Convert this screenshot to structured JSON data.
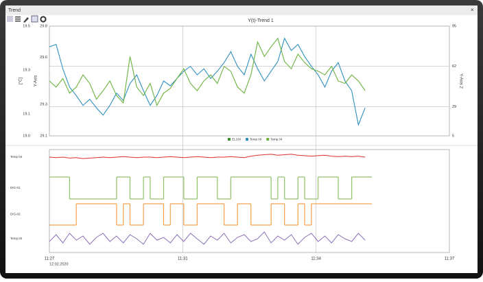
{
  "window": {
    "title": "Trend"
  },
  "chart_data": [
    {
      "type": "line",
      "title": "Y(t)-Trend 1",
      "ylabel": "[°C]",
      "ylim": [
        19.0,
        19.5
      ],
      "yticks": [
        19.5,
        19.3,
        19.1,
        {
          "value": 19,
          "label": "19.0"
        }
      ],
      "inner_axis": {
        "label": "Y-Axis",
        "lim": [
          29.1,
          29.8
        ],
        "ticks": [
          29.8,
          29.6,
          29.3,
          29.1
        ]
      },
      "y2label": "Y-Axis 2",
      "y2lim": [
        5,
        95
      ],
      "y2ticks": [
        95,
        62,
        29,
        5
      ],
      "grid": true,
      "series": [
        {
          "name": "EL100",
          "color": "#3d8f2e",
          "axis": "y2",
          "values": [
            null,
            null,
            null,
            null,
            null,
            null,
            null,
            null,
            null,
            null,
            null,
            null,
            null,
            null,
            null,
            null,
            null,
            null,
            null,
            null,
            null,
            null,
            null,
            null,
            null,
            null,
            null,
            null,
            null,
            null,
            null,
            null,
            null,
            null,
            null,
            null,
            null,
            null,
            null,
            null,
            null,
            null,
            null,
            null,
            null,
            null,
            null,
            null
          ]
        },
        {
          "name": "Temp 00",
          "color": "#2f8fc0",
          "axis": "y2",
          "values": [
            78,
            80,
            60,
            45,
            38,
            30,
            35,
            28,
            22,
            30,
            40,
            34,
            48,
            55,
            42,
            30,
            38,
            50,
            46,
            52,
            58,
            62,
            55,
            60,
            52,
            58,
            65,
            74,
            62,
            55,
            72,
            60,
            50,
            58,
            66,
            85,
            75,
            80,
            70,
            62,
            55,
            45,
            58,
            65,
            50,
            42,
            14,
            28
          ]
        },
        {
          "name": "Temp 04",
          "color": "#6ab33d",
          "axis": "y2",
          "values": [
            50,
            45,
            52,
            40,
            45,
            55,
            48,
            35,
            42,
            50,
            38,
            32,
            70,
            45,
            38,
            48,
            30,
            40,
            44,
            52,
            60,
            48,
            42,
            50,
            55,
            48,
            62,
            58,
            45,
            40,
            55,
            82,
            70,
            78,
            85,
            66,
            60,
            72,
            65,
            60,
            58,
            55,
            62,
            50,
            48,
            55,
            50,
            42
          ]
        }
      ]
    },
    {
      "type": "lanes",
      "xticks": [
        "11:27",
        "11:31",
        "11:34",
        "11:37"
      ],
      "date": "12.02.2020",
      "ylim": [
        0,
        1
      ],
      "series": [
        {
          "name": "Temp 04",
          "color": "#e0302a",
          "step": false,
          "values": [
            0.5,
            0.45,
            0.5,
            0.4,
            0.45,
            0.35,
            0.4,
            0.45,
            0.5,
            0.45,
            0.5,
            0.55,
            0.5,
            0.45,
            0.5,
            0.5,
            0.45,
            0.5,
            0.55,
            0.5,
            0.45,
            0.5,
            0.55,
            0.5,
            0.45,
            0.5,
            0.5,
            0.55,
            0.5,
            0.45,
            0.6,
            0.7,
            0.75,
            0.8,
            0.7,
            0.75,
            0.8,
            0.7,
            0.65,
            0.6,
            0.65,
            0.7,
            0.6,
            0.55,
            0.6,
            0.55,
            0.6,
            0.5
          ]
        },
        {
          "name": "DIG-01",
          "color": "#8cc063",
          "step": true,
          "values": [
            1,
            1,
            1,
            0,
            0,
            0,
            0,
            0,
            0,
            0,
            1,
            1,
            0,
            0,
            1,
            0,
            0,
            1,
            1,
            1,
            0,
            0,
            1,
            1,
            1,
            0,
            0,
            1,
            1,
            1,
            1,
            1,
            1,
            0,
            1,
            0,
            0,
            1,
            0,
            0,
            1,
            1,
            1,
            0,
            0,
            1,
            1,
            1
          ]
        },
        {
          "name": "DIG-02",
          "color": "#f5a04a",
          "step": true,
          "values": [
            0,
            0,
            0,
            0,
            1,
            1,
            1,
            1,
            1,
            1,
            0,
            1,
            0,
            0,
            1,
            1,
            1,
            0,
            1,
            1,
            0,
            0,
            1,
            1,
            1,
            1,
            0,
            0,
            1,
            1,
            0,
            0,
            0,
            1,
            1,
            0,
            0,
            1,
            0,
            1,
            1,
            1,
            1,
            1,
            1,
            1,
            1,
            1
          ]
        },
        {
          "name": "Temp 02",
          "color": "#8b6fb8",
          "step": false,
          "values": [
            0.3,
            0.8,
            0.2,
            0.9,
            0.4,
            0.7,
            0.1,
            0.6,
            0.9,
            0.3,
            0.7,
            0.2,
            0.8,
            0.5,
            0.1,
            0.9,
            0.4,
            0.6,
            0.2,
            0.8,
            0.3,
            0.9,
            0.5,
            0.1,
            0.7,
            0.4,
            0.9,
            0.2,
            0.6,
            0.8,
            0.3,
            0.5,
            1,
            0.2,
            0.7,
            0.4,
            0.8,
            0.1,
            0.6,
            0.9,
            0.3,
            0.7,
            0.2,
            0.8,
            0.5,
            0.3,
            0.9,
            0.4
          ]
        }
      ]
    }
  ]
}
